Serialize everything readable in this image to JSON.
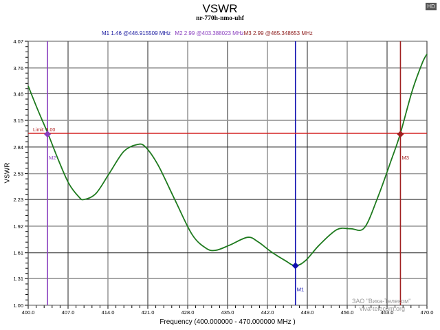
{
  "header": {
    "title": "VSWR",
    "subtitle": "nr-770h-nmo-uhf",
    "hd_badge": "HD"
  },
  "markers_readout": {
    "m1": "M1  1.46 @446.915509 MHz",
    "m2": "M2  2.99 @403.388023 MHz",
    "m3": "M3  2.99 @465.348653 MHz"
  },
  "axes": {
    "ylabel": "VSWR",
    "xlabel": "Frequency (400.000000 - 470.000000 MHz )",
    "y_ticks": [
      "4.07",
      "3.76",
      "3.46",
      "3.15",
      "2.84",
      "2.53",
      "2.23",
      "1.92",
      "1.61",
      "1.31",
      "1.00"
    ],
    "x_ticks": [
      "400.0",
      "407.0",
      "414.0",
      "421.0",
      "428.0",
      "435.0",
      "442.0",
      "449.0",
      "456.0",
      "463.0",
      "470.0"
    ]
  },
  "limit": {
    "label": "Limit: 3.00",
    "value": 3.0,
    "color": "#d42020"
  },
  "watermark": {
    "company": "ЗАО \"Вика-Телеком\"",
    "site": "viva-telecom.org"
  },
  "colors": {
    "trace": "#1e7a1e",
    "m1": "#1010b0",
    "m2": "#8a3fbf",
    "m3": "#a02020",
    "grid_dark": "#222222",
    "grid_light": "#999999"
  },
  "chart_data": {
    "type": "line",
    "title": "VSWR",
    "subtitle": "nr-770h-nmo-uhf",
    "xlabel": "Frequency (400.000000 - 470.000000 MHz )",
    "ylabel": "VSWR",
    "xlim": [
      400.0,
      470.0
    ],
    "ylim": [
      1.0,
      4.07
    ],
    "grid": true,
    "x_ticks": [
      400.0,
      407.0,
      414.0,
      421.0,
      428.0,
      435.0,
      442.0,
      449.0,
      456.0,
      463.0,
      470.0
    ],
    "y_ticks": [
      1.0,
      1.31,
      1.61,
      1.92,
      2.23,
      2.53,
      2.84,
      3.15,
      3.46,
      3.76,
      4.07
    ],
    "series": [
      {
        "name": "VSWR",
        "x": [
          400.0,
          401.7,
          403.5,
          405.3,
          407.1,
          408.9,
          409.8,
          411.9,
          414.3,
          416.8,
          419.2,
          420.6,
          422.8,
          425.8,
          428.8,
          431.3,
          433.0,
          435.4,
          438.5,
          440.3,
          442.7,
          445.1,
          446.9,
          448.7,
          451.1,
          454.2,
          456.6,
          459.0,
          461.4,
          463.8,
          465.3,
          467.4,
          469.2,
          470.0
        ],
        "values": [
          3.55,
          3.27,
          2.99,
          2.69,
          2.42,
          2.26,
          2.23,
          2.3,
          2.54,
          2.79,
          2.87,
          2.84,
          2.63,
          2.22,
          1.82,
          1.66,
          1.64,
          1.7,
          1.79,
          1.74,
          1.62,
          1.52,
          1.46,
          1.52,
          1.7,
          1.88,
          1.89,
          1.9,
          2.26,
          2.7,
          2.99,
          3.49,
          3.82,
          3.92
        ]
      }
    ],
    "markers": [
      {
        "name": "M1",
        "x": 446.915509,
        "y": 1.46
      },
      {
        "name": "M2",
        "x": 403.388023,
        "y": 2.99
      },
      {
        "name": "M3",
        "x": 465.348653,
        "y": 2.99
      }
    ],
    "limit_line": {
      "label": "Limit: 3.00",
      "y": 3.0
    }
  }
}
